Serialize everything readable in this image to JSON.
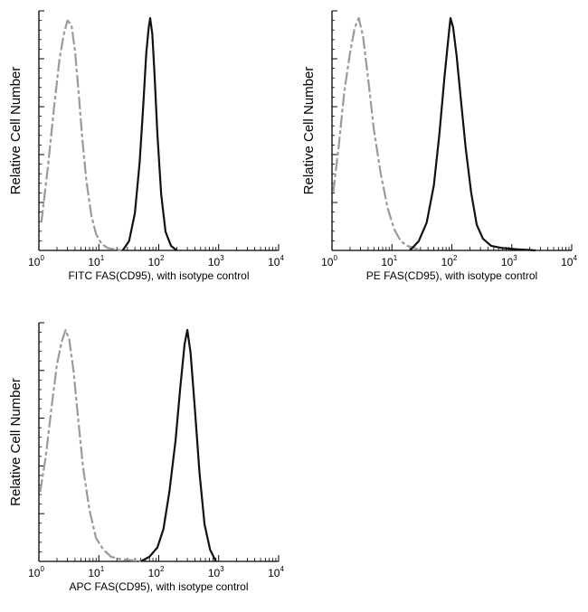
{
  "chart_data": [
    {
      "type": "line",
      "xlabel": "FITC  FAS(CD95),  with isotype control",
      "ylabel": "Relative Cell Number",
      "xscale": "log",
      "xlim": [
        1,
        10000
      ],
      "ylim": [
        0,
        1
      ],
      "x_ticks": [
        {
          "base": "10",
          "exp": "0"
        },
        {
          "base": "10",
          "exp": "1"
        },
        {
          "base": "10",
          "exp": "2"
        },
        {
          "base": "10",
          "exp": "3"
        },
        {
          "base": "10",
          "exp": "4"
        }
      ],
      "series": [
        {
          "role": "isotype",
          "color": "#9a9a9a",
          "x": [
            1.1,
            1.4,
            1.8,
            2.2,
            2.6,
            3.0,
            3.5,
            4.0,
            4.6,
            5.3,
            6.2,
            7.5,
            9.0,
            11,
            14,
            18,
            25
          ],
          "y": [
            0.12,
            0.35,
            0.62,
            0.82,
            0.93,
            0.99,
            0.97,
            0.86,
            0.68,
            0.48,
            0.3,
            0.15,
            0.07,
            0.03,
            0.01,
            0.005,
            0.0
          ]
        },
        {
          "role": "sample",
          "color": "#111111",
          "x": [
            25,
            32,
            40,
            48,
            55,
            62,
            68,
            72,
            78,
            85,
            95,
            110,
            130,
            160,
            200
          ],
          "y": [
            0.0,
            0.04,
            0.16,
            0.38,
            0.62,
            0.85,
            0.96,
            1.0,
            0.93,
            0.76,
            0.5,
            0.24,
            0.08,
            0.02,
            0.0
          ]
        }
      ]
    },
    {
      "type": "line",
      "xlabel": "PE  FAS(CD95),  with isotype control",
      "ylabel": "Relative Cell Number",
      "xscale": "log",
      "xlim": [
        1,
        10000
      ],
      "ylim": [
        0,
        1
      ],
      "x_ticks": [
        {
          "base": "10",
          "exp": "0"
        },
        {
          "base": "10",
          "exp": "1"
        },
        {
          "base": "10",
          "exp": "2"
        },
        {
          "base": "10",
          "exp": "3"
        },
        {
          "base": "10",
          "exp": "4"
        }
      ],
      "series": [
        {
          "role": "isotype",
          "color": "#9a9a9a",
          "x": [
            1.05,
            1.3,
            1.6,
            2.0,
            2.4,
            2.8,
            3.3,
            4.0,
            5.0,
            6.5,
            8.5,
            11,
            14,
            18,
            24,
            30
          ],
          "y": [
            0.25,
            0.45,
            0.68,
            0.85,
            0.96,
            1.0,
            0.92,
            0.74,
            0.52,
            0.33,
            0.18,
            0.09,
            0.04,
            0.02,
            0.01,
            0.0
          ]
        },
        {
          "role": "sample",
          "color": "#111111",
          "x": [
            20,
            28,
            38,
            50,
            62,
            75,
            88,
            95,
            105,
            120,
            140,
            170,
            210,
            260,
            330,
            450,
            700,
            1200,
            2500
          ],
          "y": [
            0.0,
            0.04,
            0.12,
            0.28,
            0.5,
            0.74,
            0.92,
            1.0,
            0.96,
            0.84,
            0.66,
            0.44,
            0.25,
            0.11,
            0.05,
            0.02,
            0.01,
            0.005,
            0.0
          ]
        }
      ]
    },
    {
      "type": "line",
      "xlabel": "APC FAS(CD95), with isotype control",
      "ylabel": "Relative Cell Number",
      "xscale": "log",
      "xlim": [
        1,
        10000
      ],
      "ylim": [
        0,
        1
      ],
      "x_ticks": [
        {
          "base": "10",
          "exp": "0"
        },
        {
          "base": "10",
          "exp": "1"
        },
        {
          "base": "10",
          "exp": "2"
        },
        {
          "base": "10",
          "exp": "3"
        },
        {
          "base": "10",
          "exp": "4"
        }
      ],
      "series": [
        {
          "role": "isotype",
          "color": "#9a9a9a",
          "x": [
            1.05,
            1.3,
            1.6,
            2.0,
            2.4,
            2.8,
            3.2,
            3.8,
            4.5,
            5.5,
            7.0,
            9.0,
            12,
            16,
            22,
            35,
            60
          ],
          "y": [
            0.3,
            0.45,
            0.65,
            0.85,
            0.95,
            1.0,
            0.96,
            0.82,
            0.62,
            0.4,
            0.22,
            0.1,
            0.05,
            0.02,
            0.01,
            0.005,
            0.0
          ]
        },
        {
          "role": "sample",
          "color": "#111111",
          "x": [
            50,
            70,
            95,
            120,
            150,
            190,
            230,
            270,
            300,
            340,
            400,
            480,
            580,
            720,
            900
          ],
          "y": [
            0.0,
            0.02,
            0.06,
            0.14,
            0.3,
            0.52,
            0.76,
            0.94,
            1.0,
            0.9,
            0.66,
            0.38,
            0.16,
            0.05,
            0.0
          ]
        }
      ]
    }
  ]
}
